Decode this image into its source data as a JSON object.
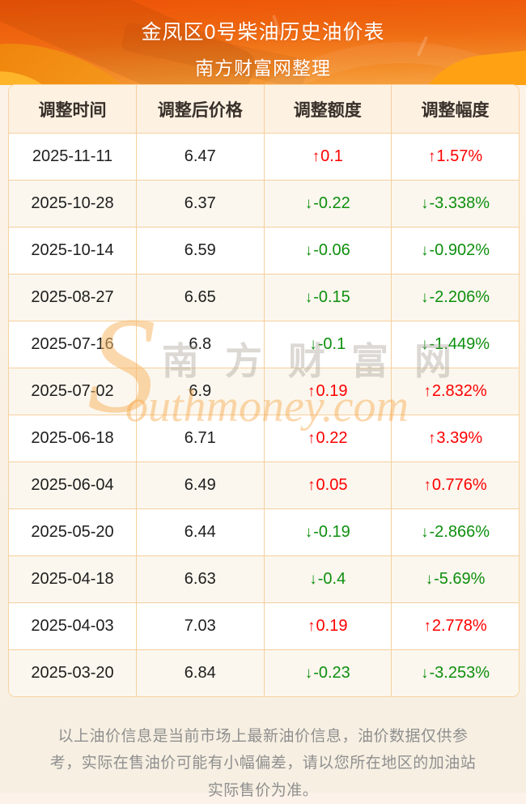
{
  "header": {
    "title": "金凤区0号柴油历史油价表",
    "subtitle": "南方财富网整理"
  },
  "table": {
    "columns": [
      "调整时间",
      "调整后价格",
      "调整额度",
      "调整幅度"
    ],
    "arrow_up": "↑",
    "arrow_down": "↓",
    "rows": [
      {
        "date": "2025-11-11",
        "price": "6.47",
        "change": "0.1",
        "percent": "1.57%",
        "direction": "up"
      },
      {
        "date": "2025-10-28",
        "price": "6.37",
        "change": "-0.22",
        "percent": "-3.338%",
        "direction": "down"
      },
      {
        "date": "2025-10-14",
        "price": "6.59",
        "change": "-0.06",
        "percent": "-0.902%",
        "direction": "down"
      },
      {
        "date": "2025-08-27",
        "price": "6.65",
        "change": "-0.15",
        "percent": "-2.206%",
        "direction": "down"
      },
      {
        "date": "2025-07-16",
        "price": "6.8",
        "change": "-0.1",
        "percent": "-1.449%",
        "direction": "down"
      },
      {
        "date": "2025-07-02",
        "price": "6.9",
        "change": "0.19",
        "percent": "2.832%",
        "direction": "up"
      },
      {
        "date": "2025-06-18",
        "price": "6.71",
        "change": "0.22",
        "percent": "3.39%",
        "direction": "up"
      },
      {
        "date": "2025-06-04",
        "price": "6.49",
        "change": "0.05",
        "percent": "0.776%",
        "direction": "up"
      },
      {
        "date": "2025-05-20",
        "price": "6.44",
        "change": "-0.19",
        "percent": "-2.866%",
        "direction": "down"
      },
      {
        "date": "2025-04-18",
        "price": "6.63",
        "change": "-0.4",
        "percent": "-5.69%",
        "direction": "down"
      },
      {
        "date": "2025-04-03",
        "price": "7.03",
        "change": "0.19",
        "percent": "2.778%",
        "direction": "up"
      },
      {
        "date": "2025-03-20",
        "price": "6.84",
        "change": "-0.23",
        "percent": "-3.253%",
        "direction": "down"
      }
    ]
  },
  "watermark": {
    "s": "S",
    "cn": "南方财富网",
    "en": "outhmoney.com"
  },
  "footer": {
    "note": "以上油价信息是当前市场上最新油价信息，油价数据仅供参考，实际在售油价可能有小幅偏差，请以您所在地区的加油站实际售价为准。"
  },
  "colors": {
    "up": "#fe0000",
    "down": "#0e8f0e",
    "banner_top": "#ed5306",
    "banner_bottom": "#f5a243",
    "table_border": "#f6cf9d",
    "header_row_bg": "#fdf1e2",
    "alt_row_bg": "#fbf7ee",
    "page_bg": "#faf1e4"
  }
}
